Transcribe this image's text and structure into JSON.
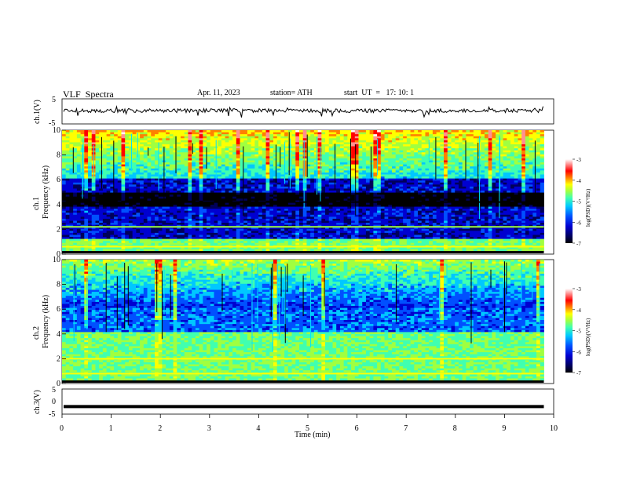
{
  "header": {
    "title": "VLF  Spectra",
    "date": "Apr. 11, 2023",
    "station": "station= ATH",
    "start": "start  UT  =   17: 10: 1"
  },
  "colors": {
    "waveform": "#000000",
    "colormap": [
      "#000000",
      "#00005a",
      "#0000d0",
      "#0050ff",
      "#00c8ff",
      "#40ffb0",
      "#a0ff40",
      "#ffff00",
      "#ff8000",
      "#ff0000",
      "#ff9090",
      "#ffffff"
    ]
  },
  "chart_data": [
    {
      "type": "line",
      "panel": "ch1-waveform",
      "ylabel": "ch.1(V)",
      "ylim": [
        -5,
        5
      ],
      "yticks": [
        "5",
        "-5"
      ],
      "series": [
        {
          "description_level": 0.3
        }
      ]
    },
    {
      "type": "heatmap",
      "panel": "ch1-spectrogram",
      "ylabel_top": "ch.1",
      "ylabel": "Frequency  (kHz)",
      "ylim": [
        0,
        10
      ],
      "yticks": [
        "0",
        "2",
        "4",
        "6",
        "8",
        "10"
      ],
      "colorbar": {
        "label": "log(PSD)(V²/Hz)",
        "ticks": [
          "-3",
          "-4",
          "-5",
          "-6",
          "-7"
        ],
        "range": [
          -7,
          -3
        ]
      },
      "bands": [
        {
          "freq_khz": 4.2,
          "level": -6.8
        },
        {
          "freq_khz": 2.2,
          "level": -4.8
        },
        {
          "freq_khz": 0.6,
          "level": -4.5
        }
      ]
    },
    {
      "type": "heatmap",
      "panel": "ch2-spectrogram",
      "ylabel_top": "ch.2",
      "ylabel": "Frequency  (kHz)",
      "ylim": [
        0,
        10
      ],
      "yticks": [
        "0",
        "2",
        "4",
        "6",
        "8",
        "10"
      ],
      "colorbar": {
        "label": "log(PSD)(V²/Hz)",
        "ticks": [
          "-3",
          "-4",
          "-5",
          "-6",
          "-7"
        ],
        "range": [
          -7,
          -3
        ]
      },
      "bands": [
        {
          "freq_khz": 2.0,
          "level": -4.6
        },
        {
          "freq_khz": 0.8,
          "level": -4.4
        }
      ]
    },
    {
      "type": "line",
      "panel": "ch3-waveform",
      "ylabel": "ch.3(V)",
      "ylim": [
        -5,
        5
      ],
      "yticks": [
        "5",
        "0",
        "-5"
      ],
      "series": [
        {
          "constant_value": -2
        }
      ]
    }
  ],
  "xaxis": {
    "label": "Time  (min)",
    "ticks": [
      "0",
      "1",
      "2",
      "3",
      "4",
      "5",
      "6",
      "7",
      "8",
      "9",
      "10"
    ],
    "range": [
      0,
      10
    ],
    "data_end": 9.8
  }
}
